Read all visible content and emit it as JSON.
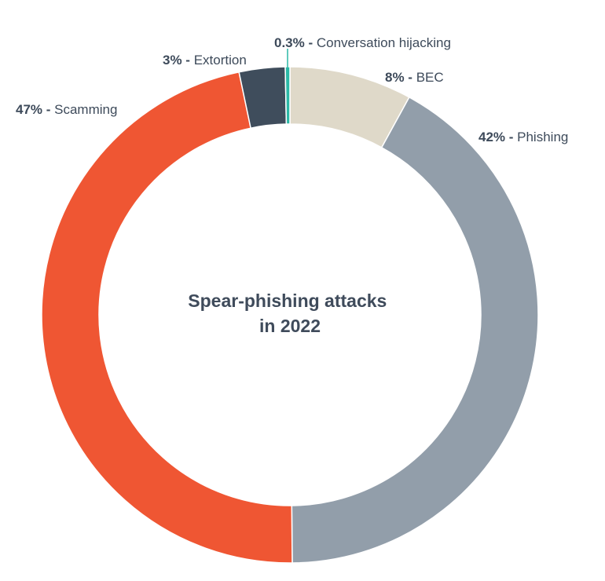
{
  "chart_data": {
    "type": "pie",
    "title_lines": [
      "Spear-phishing attacks",
      "in 2022"
    ],
    "slices": [
      {
        "label": "BEC",
        "value": 8,
        "value_text": "8%",
        "color": "#dfd9c9"
      },
      {
        "label": "Phishing",
        "value": 42,
        "value_text": "42%",
        "color": "#929eaa"
      },
      {
        "label": "Scamming",
        "value": 47,
        "value_text": "47%",
        "color": "#ef5633"
      },
      {
        "label": "Extortion",
        "value": 3,
        "value_text": "3%",
        "color": "#3f4d5c"
      },
      {
        "label": "Conversation hijacking",
        "value": 0.3,
        "value_text": "0.3%",
        "color": "#2bb8a6"
      }
    ],
    "legend": "none"
  }
}
